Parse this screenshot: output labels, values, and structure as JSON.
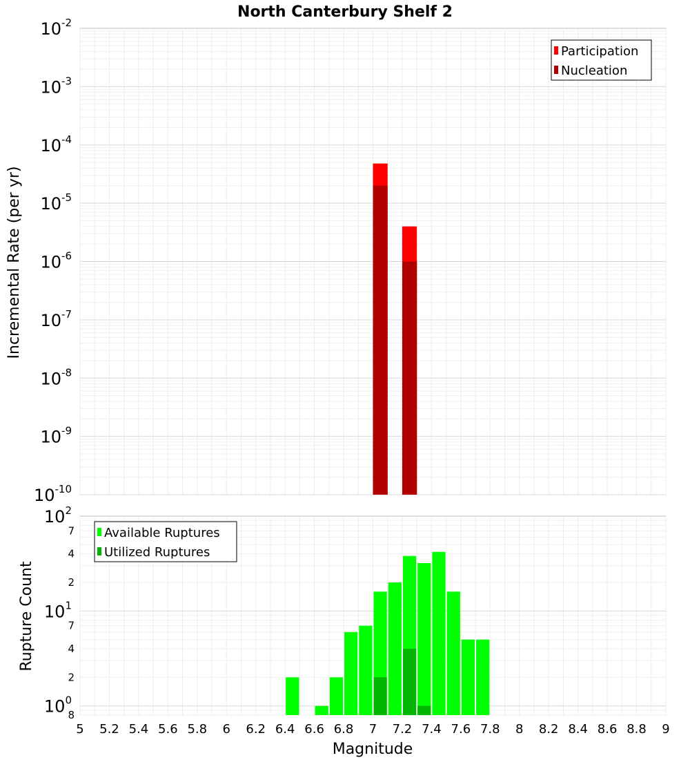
{
  "chart_data": [
    {
      "type": "bar",
      "log_scale": true,
      "title": "North Canterbury Shelf 2",
      "xlabel": "Magnitude",
      "ylabel": "Incremental Rate (per yr)",
      "xlim": [
        5,
        9
      ],
      "ylim": [
        1e-10,
        0.01
      ],
      "bar_width": 0.1,
      "y_ticks": [
        {
          "value": 0.01,
          "base": "10",
          "exp": "-2"
        },
        {
          "value": 0.001,
          "base": "10",
          "exp": "-3"
        },
        {
          "value": 0.0001,
          "base": "10",
          "exp": "-4"
        },
        {
          "value": 1e-05,
          "base": "10",
          "exp": "-5"
        },
        {
          "value": 1e-06,
          "base": "10",
          "exp": "-6"
        },
        {
          "value": 1e-07,
          "base": "10",
          "exp": "-7"
        },
        {
          "value": 1e-08,
          "base": "10",
          "exp": "-8"
        },
        {
          "value": 1e-09,
          "base": "10",
          "exp": "-9"
        },
        {
          "value": 1e-10,
          "base": "10",
          "exp": "-10"
        }
      ],
      "legend": {
        "position": "top-right",
        "entries": [
          "Participation",
          "Nucleation"
        ]
      },
      "series": [
        {
          "name": "Participation",
          "color": "#ff0000",
          "points": [
            {
              "x": 7.05,
              "y": 4.8e-05
            },
            {
              "x": 7.25,
              "y": 4e-06
            }
          ]
        },
        {
          "name": "Nucleation",
          "color": "#b00000",
          "points": [
            {
              "x": 7.05,
              "y": 2e-05
            },
            {
              "x": 7.25,
              "y": 1e-06
            }
          ]
        }
      ]
    },
    {
      "type": "bar",
      "log_scale": true,
      "xlabel": "Magnitude",
      "ylabel": "Rupture Count",
      "xlim": [
        5,
        9
      ],
      "ylim": [
        0.8,
        100
      ],
      "bar_width": 0.1,
      "x_ticks": [
        "5",
        "5.2",
        "5.4",
        "5.6",
        "5.8",
        "6",
        "6.2",
        "6.4",
        "6.6",
        "6.8",
        "7",
        "7.2",
        "7.4",
        "7.6",
        "7.8",
        "8",
        "8.2",
        "8.4",
        "8.6",
        "8.8",
        "9"
      ],
      "y_major_ticks": [
        {
          "value": 1,
          "base": "10",
          "exp": "0"
        },
        {
          "value": 10,
          "base": "10",
          "exp": "1"
        },
        {
          "value": 100,
          "base": "10",
          "exp": "2"
        }
      ],
      "y_minor_labels": [
        {
          "value": 0.8,
          "label": "8"
        },
        {
          "value": 2,
          "label": "2"
        },
        {
          "value": 4,
          "label": "4"
        },
        {
          "value": 7,
          "label": "7"
        },
        {
          "value": 20,
          "label": "2"
        },
        {
          "value": 40,
          "label": "4"
        },
        {
          "value": 70,
          "label": "7"
        }
      ],
      "legend": {
        "position": "top-left",
        "entries": [
          "Available Ruptures",
          "Utilized Ruptures"
        ]
      },
      "series": [
        {
          "name": "Available Ruptures",
          "color": "#00ff00",
          "points": [
            {
              "x": 6.45,
              "y": 2
            },
            {
              "x": 6.65,
              "y": 1
            },
            {
              "x": 6.75,
              "y": 2
            },
            {
              "x": 6.85,
              "y": 6
            },
            {
              "x": 6.95,
              "y": 7
            },
            {
              "x": 7.05,
              "y": 16
            },
            {
              "x": 7.15,
              "y": 20
            },
            {
              "x": 7.25,
              "y": 38
            },
            {
              "x": 7.35,
              "y": 32
            },
            {
              "x": 7.45,
              "y": 42
            },
            {
              "x": 7.55,
              "y": 16
            },
            {
              "x": 7.65,
              "y": 5
            },
            {
              "x": 7.75,
              "y": 5
            }
          ]
        },
        {
          "name": "Utilized Ruptures",
          "color": "#00b400",
          "points": [
            {
              "x": 7.05,
              "y": 2
            },
            {
              "x": 7.25,
              "y": 4
            },
            {
              "x": 7.35,
              "y": 1
            }
          ]
        }
      ]
    }
  ]
}
